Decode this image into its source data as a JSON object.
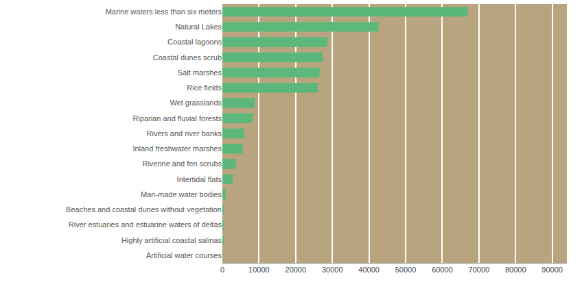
{
  "chart_data": {
    "type": "bar",
    "orientation": "horizontal",
    "categories": [
      "Marine waters less than six meters",
      "Natural Lakes",
      "Coastal lagoons",
      "Coastal dunes scrub",
      "Salt marshes",
      "Rice fields",
      "Wet grasslands",
      "Riparian and fluvial forests",
      "Rivers and river banks",
      "Inland freshwater marshes",
      "Riverine and fen scrubs",
      "Intertidal flats",
      "Man-made water bodies",
      "Beaches and coastal dunes without vegetation",
      "River estuaries and estuarine waters of deltas",
      "Highly artificial coastal salinas",
      "Artificial water courses"
    ],
    "values": [
      67000,
      42600,
      28700,
      27400,
      26500,
      26000,
      8900,
      8300,
      5900,
      5500,
      3700,
      2800,
      900,
      500,
      300,
      200,
      100
    ],
    "color": "#5cb87a",
    "xlim": [
      0,
      94000
    ],
    "xticks": [
      0,
      10000,
      20000,
      30000,
      40000,
      50000,
      60000,
      70000,
      80000,
      90000
    ],
    "grid": true
  }
}
